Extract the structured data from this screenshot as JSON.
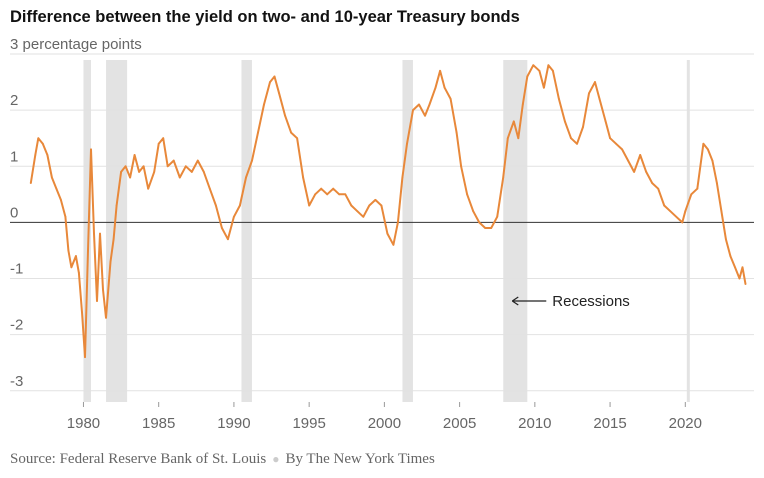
{
  "chart_data": {
    "type": "line",
    "title": "Difference between the yield on two- and 10-year Treasury bonds",
    "ylabel": "3 percentage points",
    "xlim": [
      1976.5,
      2024.3
    ],
    "ylim": [
      -3.2,
      3.0
    ],
    "x_ticks": [
      1980,
      1985,
      1990,
      1995,
      2000,
      2005,
      2010,
      2015,
      2020
    ],
    "y_ticks": [
      {
        "value": 3,
        "label": ""
      },
      {
        "value": 2,
        "label": "2"
      },
      {
        "value": 1,
        "label": "1"
      },
      {
        "value": 0,
        "label": "0"
      },
      {
        "value": -1,
        "label": "-1"
      },
      {
        "value": -2,
        "label": "-2"
      },
      {
        "value": -3,
        "label": "-3"
      }
    ],
    "grid": true,
    "line_color": "#e8883a",
    "recession_color": "#e3e3e3",
    "annotation": {
      "text": "Recessions",
      "x": 2008.5,
      "y": -1.4
    },
    "recessions": [
      [
        1980.0,
        1980.5
      ],
      [
        1981.5,
        1982.9
      ],
      [
        1990.5,
        1991.2
      ],
      [
        2001.2,
        2001.9
      ],
      [
        2007.9,
        2009.5
      ],
      [
        2020.1,
        2020.3
      ]
    ],
    "series": [
      {
        "values": [
          [
            1976.5,
            0.7
          ],
          [
            1976.8,
            1.2
          ],
          [
            1977.0,
            1.5
          ],
          [
            1977.3,
            1.4
          ],
          [
            1977.6,
            1.2
          ],
          [
            1977.9,
            0.8
          ],
          [
            1978.2,
            0.6
          ],
          [
            1978.5,
            0.4
          ],
          [
            1978.8,
            0.1
          ],
          [
            1979.0,
            -0.5
          ],
          [
            1979.2,
            -0.8
          ],
          [
            1979.5,
            -0.6
          ],
          [
            1979.7,
            -0.9
          ],
          [
            1979.9,
            -1.6
          ],
          [
            1980.1,
            -2.4
          ],
          [
            1980.3,
            -0.5
          ],
          [
            1980.5,
            1.3
          ],
          [
            1980.7,
            -0.2
          ],
          [
            1980.9,
            -1.4
          ],
          [
            1981.1,
            -0.2
          ],
          [
            1981.3,
            -1.2
          ],
          [
            1981.5,
            -1.7
          ],
          [
            1981.8,
            -0.7
          ],
          [
            1982.0,
            -0.3
          ],
          [
            1982.2,
            0.3
          ],
          [
            1982.5,
            0.9
          ],
          [
            1982.8,
            1.0
          ],
          [
            1983.1,
            0.8
          ],
          [
            1983.4,
            1.2
          ],
          [
            1983.7,
            0.9
          ],
          [
            1984.0,
            1.0
          ],
          [
            1984.3,
            0.6
          ],
          [
            1984.7,
            0.9
          ],
          [
            1985.0,
            1.4
          ],
          [
            1985.3,
            1.5
          ],
          [
            1985.6,
            1.0
          ],
          [
            1986.0,
            1.1
          ],
          [
            1986.4,
            0.8
          ],
          [
            1986.8,
            1.0
          ],
          [
            1987.2,
            0.9
          ],
          [
            1987.6,
            1.1
          ],
          [
            1988.0,
            0.9
          ],
          [
            1988.4,
            0.6
          ],
          [
            1988.8,
            0.3
          ],
          [
            1989.2,
            -0.1
          ],
          [
            1989.6,
            -0.3
          ],
          [
            1990.0,
            0.1
          ],
          [
            1990.4,
            0.3
          ],
          [
            1990.8,
            0.8
          ],
          [
            1991.2,
            1.1
          ],
          [
            1991.6,
            1.6
          ],
          [
            1992.0,
            2.1
          ],
          [
            1992.4,
            2.5
          ],
          [
            1992.7,
            2.6
          ],
          [
            1993.0,
            2.3
          ],
          [
            1993.4,
            1.9
          ],
          [
            1993.8,
            1.6
          ],
          [
            1994.2,
            1.5
          ],
          [
            1994.6,
            0.8
          ],
          [
            1995.0,
            0.3
          ],
          [
            1995.4,
            0.5
          ],
          [
            1995.8,
            0.6
          ],
          [
            1996.2,
            0.5
          ],
          [
            1996.6,
            0.6
          ],
          [
            1997.0,
            0.5
          ],
          [
            1997.4,
            0.5
          ],
          [
            1997.8,
            0.3
          ],
          [
            1998.2,
            0.2
          ],
          [
            1998.6,
            0.1
          ],
          [
            1999.0,
            0.3
          ],
          [
            1999.4,
            0.4
          ],
          [
            1999.8,
            0.3
          ],
          [
            2000.2,
            -0.2
          ],
          [
            2000.6,
            -0.4
          ],
          [
            2000.9,
            0.0
          ],
          [
            2001.2,
            0.8
          ],
          [
            2001.5,
            1.4
          ],
          [
            2001.9,
            2.0
          ],
          [
            2002.3,
            2.1
          ],
          [
            2002.7,
            1.9
          ],
          [
            2003.0,
            2.1
          ],
          [
            2003.4,
            2.4
          ],
          [
            2003.7,
            2.7
          ],
          [
            2004.0,
            2.4
          ],
          [
            2004.4,
            2.2
          ],
          [
            2004.8,
            1.6
          ],
          [
            2005.1,
            1.0
          ],
          [
            2005.5,
            0.5
          ],
          [
            2005.9,
            0.2
          ],
          [
            2006.3,
            0.0
          ],
          [
            2006.7,
            -0.1
          ],
          [
            2007.1,
            -0.1
          ],
          [
            2007.5,
            0.1
          ],
          [
            2007.9,
            0.8
          ],
          [
            2008.2,
            1.5
          ],
          [
            2008.6,
            1.8
          ],
          [
            2008.9,
            1.5
          ],
          [
            2009.2,
            2.1
          ],
          [
            2009.5,
            2.6
          ],
          [
            2009.9,
            2.8
          ],
          [
            2010.3,
            2.7
          ],
          [
            2010.6,
            2.4
          ],
          [
            2010.9,
            2.8
          ],
          [
            2011.2,
            2.7
          ],
          [
            2011.6,
            2.2
          ],
          [
            2012.0,
            1.8
          ],
          [
            2012.4,
            1.5
          ],
          [
            2012.8,
            1.4
          ],
          [
            2013.2,
            1.7
          ],
          [
            2013.6,
            2.3
          ],
          [
            2014.0,
            2.5
          ],
          [
            2014.3,
            2.2
          ],
          [
            2014.7,
            1.8
          ],
          [
            2015.0,
            1.5
          ],
          [
            2015.4,
            1.4
          ],
          [
            2015.8,
            1.3
          ],
          [
            2016.2,
            1.1
          ],
          [
            2016.6,
            0.9
          ],
          [
            2017.0,
            1.2
          ],
          [
            2017.4,
            0.9
          ],
          [
            2017.8,
            0.7
          ],
          [
            2018.2,
            0.6
          ],
          [
            2018.6,
            0.3
          ],
          [
            2019.0,
            0.2
          ],
          [
            2019.4,
            0.1
          ],
          [
            2019.8,
            0.0
          ],
          [
            2020.0,
            0.2
          ],
          [
            2020.4,
            0.5
          ],
          [
            2020.8,
            0.6
          ],
          [
            2021.2,
            1.4
          ],
          [
            2021.5,
            1.3
          ],
          [
            2021.8,
            1.1
          ],
          [
            2022.1,
            0.7
          ],
          [
            2022.4,
            0.2
          ],
          [
            2022.7,
            -0.3
          ],
          [
            2023.0,
            -0.6
          ],
          [
            2023.3,
            -0.8
          ],
          [
            2023.6,
            -1.0
          ],
          [
            2023.8,
            -0.8
          ],
          [
            2024.0,
            -1.1
          ]
        ]
      }
    ],
    "source": "Source: Federal Reserve Bank of St. Louis",
    "credit": "By The New York Times"
  }
}
